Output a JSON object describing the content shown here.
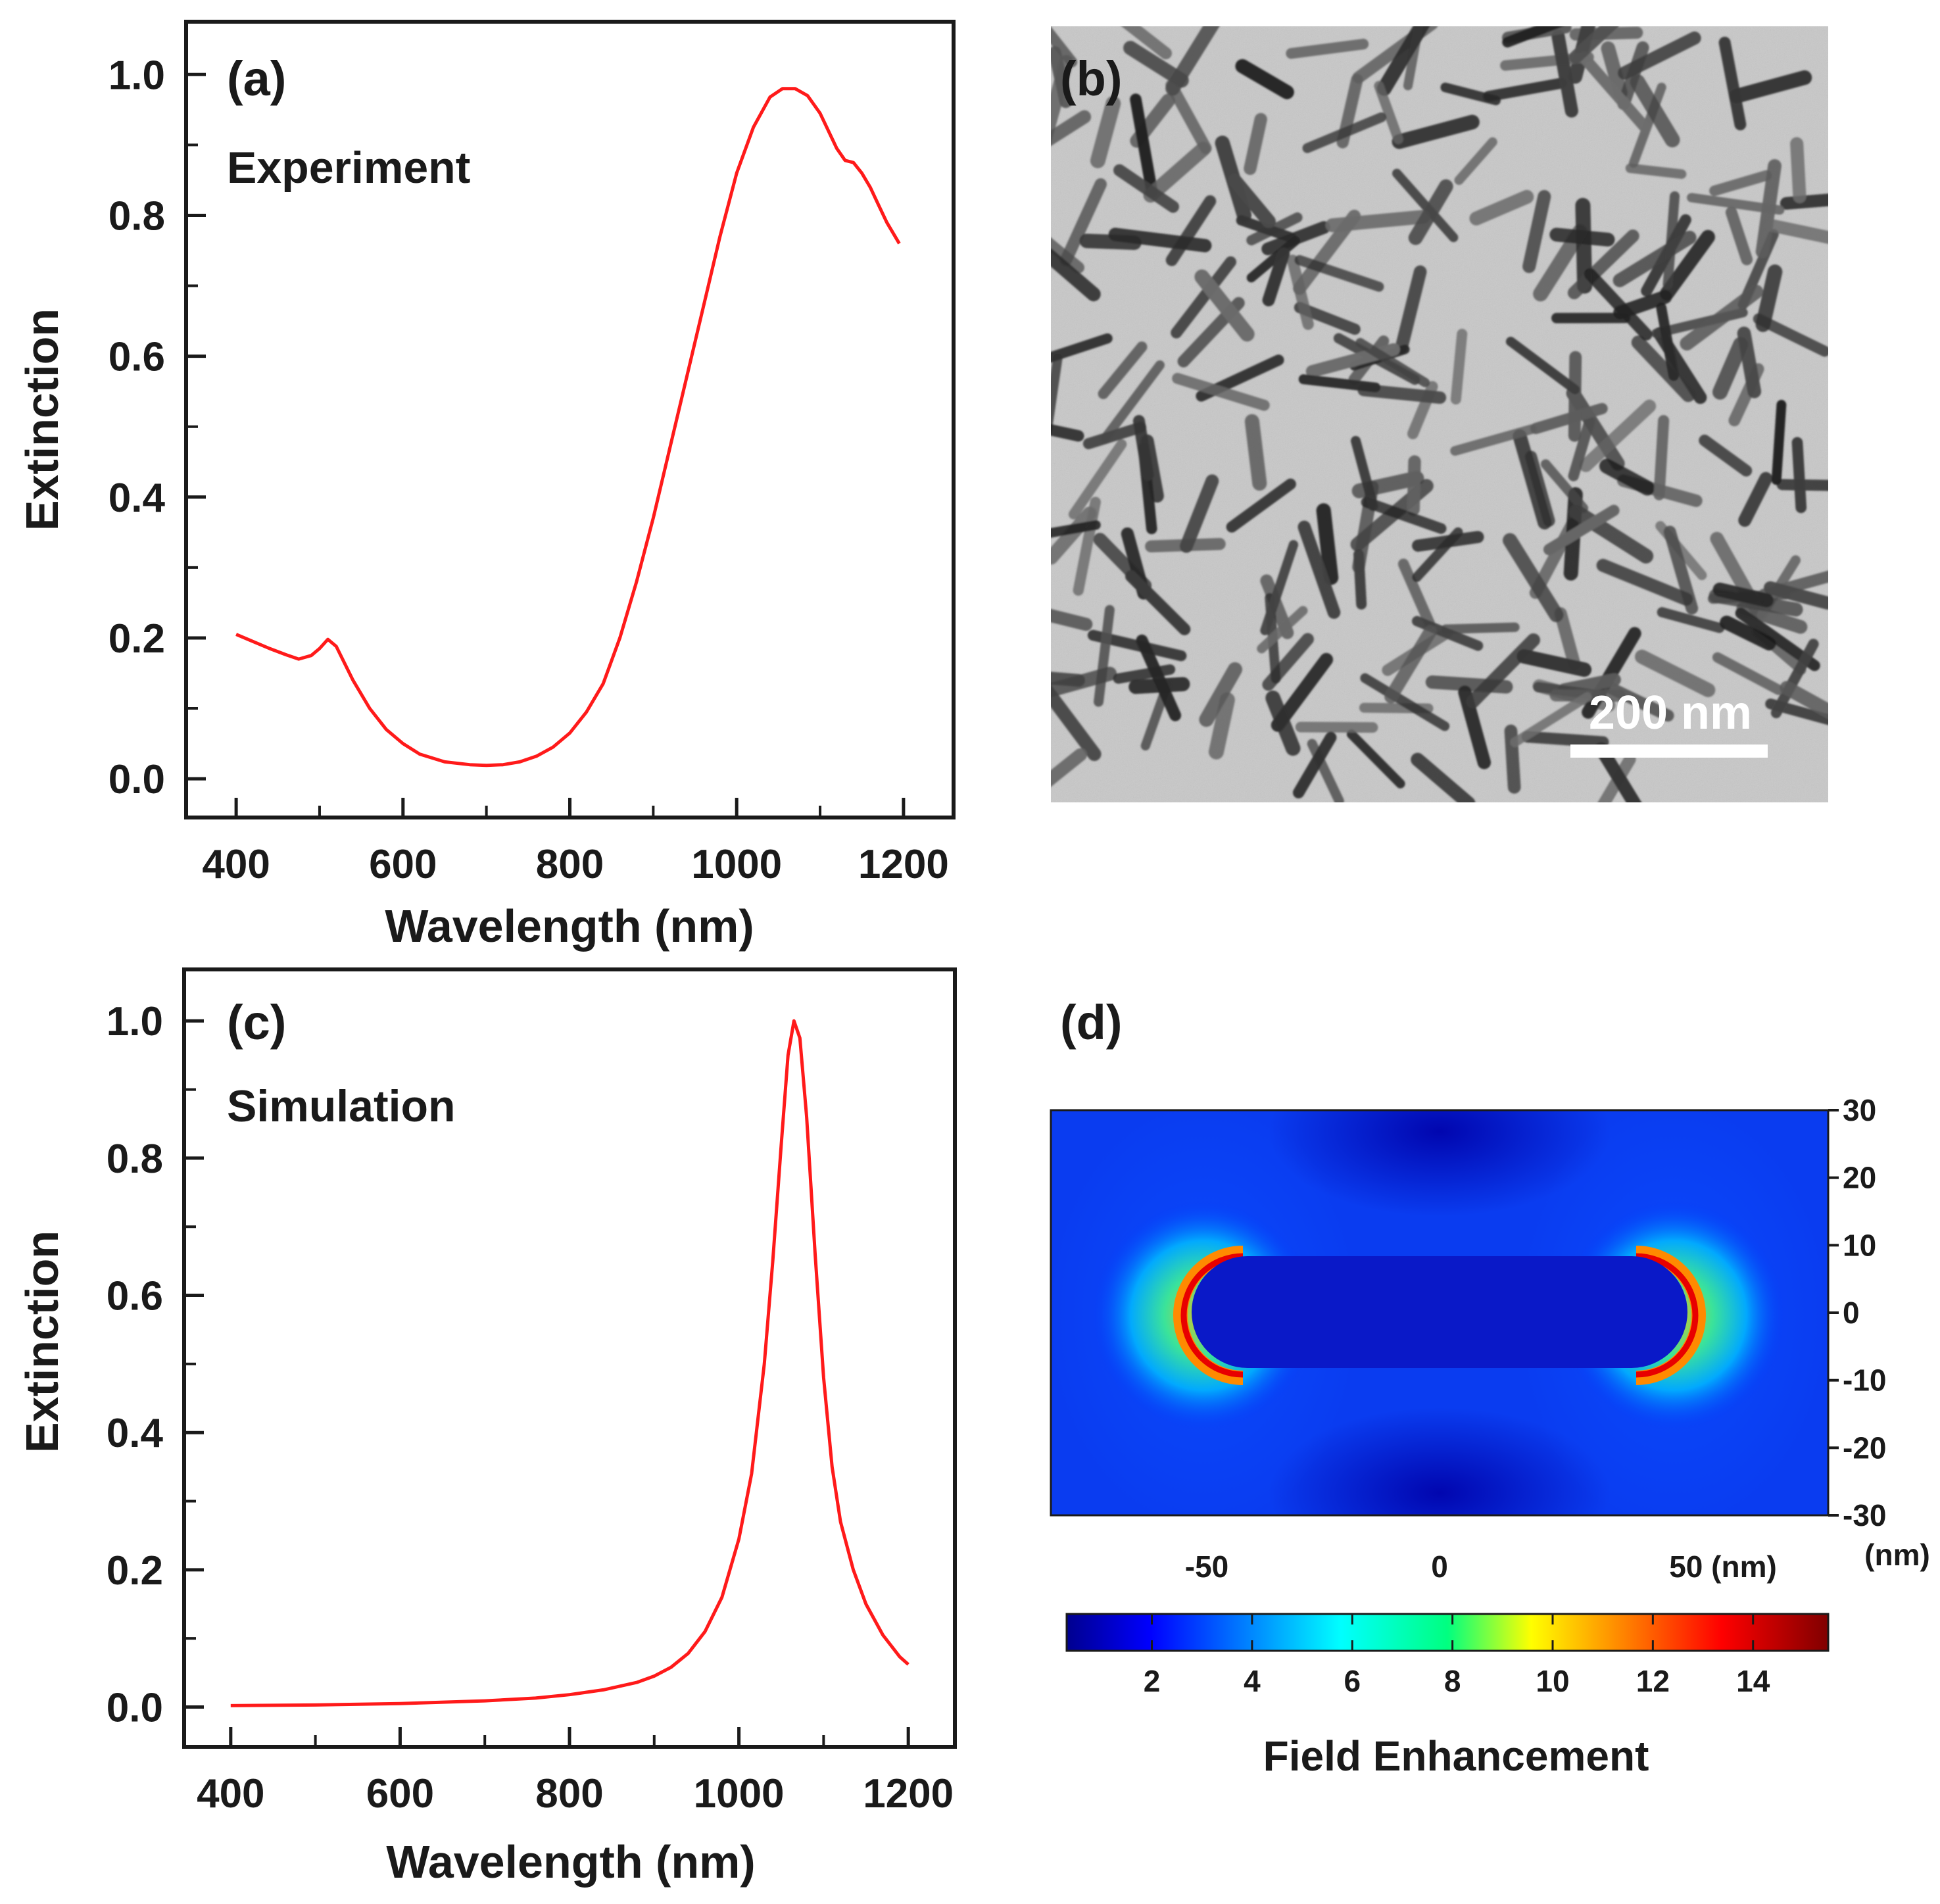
{
  "colors": {
    "curve": "#ff1a1a",
    "axis": "#1a1a1a",
    "tem_background": "#c9c9c9",
    "tem_rod": "#2e2e2e",
    "field_low": "#00008f",
    "field_high": "#800000"
  },
  "chart_data": [
    {
      "id": "a",
      "type": "line",
      "panel_label": "(a)",
      "annotation": "Experiment",
      "xlabel": "Wavelength (nm)",
      "ylabel": "Extinction",
      "xlim": [
        340,
        1260
      ],
      "ylim": [
        -0.055,
        1.075
      ],
      "x_ticks": [
        400,
        600,
        800,
        1000,
        1200
      ],
      "x_tick_labels": [
        "400",
        "600",
        "800",
        "1000",
        "1200"
      ],
      "y_ticks": [
        0.0,
        0.2,
        0.4,
        0.6,
        0.8,
        1.0
      ],
      "y_tick_labels": [
        "0.0",
        "0.2",
        "0.4",
        "0.6",
        "0.8",
        "1.0"
      ],
      "series": [
        {
          "name": "Experiment",
          "x": [
            400,
            420,
            440,
            460,
            475,
            490,
            500,
            510,
            520,
            540,
            560,
            580,
            600,
            620,
            650,
            680,
            700,
            720,
            740,
            760,
            780,
            800,
            820,
            840,
            860,
            880,
            900,
            920,
            940,
            960,
            980,
            1000,
            1020,
            1040,
            1055,
            1070,
            1085,
            1100,
            1120,
            1130,
            1140,
            1150,
            1160,
            1170,
            1180,
            1195
          ],
          "y": [
            0.205,
            0.195,
            0.185,
            0.176,
            0.17,
            0.175,
            0.185,
            0.198,
            0.188,
            0.14,
            0.1,
            0.07,
            0.05,
            0.035,
            0.024,
            0.02,
            0.019,
            0.02,
            0.024,
            0.032,
            0.045,
            0.065,
            0.095,
            0.135,
            0.2,
            0.28,
            0.37,
            0.47,
            0.57,
            0.67,
            0.77,
            0.86,
            0.925,
            0.968,
            0.98,
            0.98,
            0.97,
            0.945,
            0.895,
            0.878,
            0.875,
            0.86,
            0.84,
            0.815,
            0.79,
            0.76
          ]
        }
      ]
    },
    {
      "id": "c",
      "type": "line",
      "panel_label": "(c)",
      "annotation": "Simulation",
      "xlabel": "Wavelength (nm)",
      "ylabel": "Extinction",
      "xlim": [
        345,
        1255
      ],
      "ylim": [
        -0.058,
        1.075
      ],
      "x_ticks": [
        400,
        600,
        800,
        1000,
        1200
      ],
      "x_tick_labels": [
        "400",
        "600",
        "800",
        "1000",
        "1200"
      ],
      "y_ticks": [
        0.0,
        0.2,
        0.4,
        0.6,
        0.8,
        1.0
      ],
      "y_tick_labels": [
        "0.0",
        "0.2",
        "0.4",
        "0.6",
        "0.8",
        "1.0"
      ],
      "series": [
        {
          "name": "Simulation",
          "x": [
            400,
            500,
            600,
            700,
            760,
            800,
            840,
            880,
            900,
            920,
            940,
            960,
            980,
            1000,
            1015,
            1030,
            1040,
            1050,
            1058,
            1065,
            1072,
            1080,
            1090,
            1100,
            1110,
            1120,
            1135,
            1150,
            1170,
            1190,
            1200
          ],
          "y": [
            0.002,
            0.003,
            0.005,
            0.009,
            0.013,
            0.018,
            0.025,
            0.036,
            0.045,
            0.058,
            0.078,
            0.11,
            0.16,
            0.245,
            0.34,
            0.5,
            0.65,
            0.82,
            0.95,
            1.0,
            0.975,
            0.86,
            0.66,
            0.48,
            0.35,
            0.27,
            0.2,
            0.15,
            0.105,
            0.073,
            0.062
          ]
        }
      ]
    }
  ],
  "panel_b": {
    "label": "(b)",
    "scale_bar_label": "200 nm"
  },
  "panel_d": {
    "label": "(d)",
    "x_tick_labels": [
      "-50",
      "0",
      "50 (nm)"
    ],
    "y_tick_labels": [
      "30",
      "20",
      "10",
      "0",
      "-10",
      "-20",
      "-30"
    ],
    "y_unit_label": "(nm)",
    "field_map": {
      "x_range_nm": [
        -85,
        85
      ],
      "y_range_nm": [
        -30,
        30
      ],
      "rod_length_nm": 104,
      "rod_diameter_nm": 17
    },
    "colorbar": {
      "range": [
        0.3,
        15.5
      ],
      "ticks": [
        2,
        4,
        6,
        8,
        10,
        12,
        14
      ],
      "tick_labels": [
        "2",
        "4",
        "6",
        "8",
        "10",
        "12",
        "14"
      ],
      "title": "Field Enhancement",
      "colormap": "jet"
    }
  }
}
